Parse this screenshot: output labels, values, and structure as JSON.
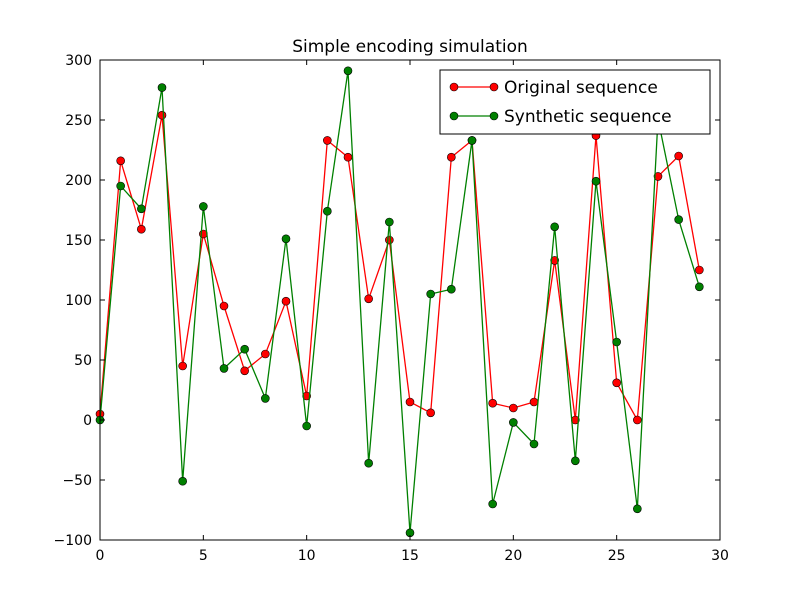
{
  "chart_data": {
    "type": "line",
    "title": "Simple encoding simulation",
    "xlabel": "",
    "ylabel": "",
    "xlim": [
      0,
      30
    ],
    "ylim": [
      -100,
      300
    ],
    "xticks": [
      0,
      5,
      10,
      15,
      20,
      25,
      30
    ],
    "yticks": [
      -100,
      -50,
      0,
      50,
      100,
      150,
      200,
      250,
      300
    ],
    "xtick_labels": [
      "0",
      "5",
      "10",
      "15",
      "20",
      "25",
      "30"
    ],
    "ytick_labels": [
      "−100",
      "−50",
      "0",
      "50",
      "100",
      "150",
      "200",
      "250",
      "300"
    ],
    "grid": false,
    "legend_position": "top-right",
    "x": [
      0,
      1,
      2,
      3,
      4,
      5,
      6,
      7,
      8,
      9,
      10,
      11,
      12,
      13,
      14,
      15,
      16,
      17,
      18,
      19,
      20,
      21,
      22,
      23,
      24,
      25,
      26,
      27,
      28,
      29
    ],
    "series": [
      {
        "name": "Original sequence",
        "color": "#ff0000",
        "values": [
          5,
          216,
          159,
          254,
          45,
          155,
          95,
          41,
          55,
          99,
          20,
          233,
          219,
          101,
          150,
          15,
          6,
          219,
          233,
          14,
          10,
          15,
          133,
          0,
          237,
          31,
          0,
          203,
          220,
          125
        ]
      },
      {
        "name": "Synthetic sequence",
        "color": "#008000",
        "values": [
          0,
          195,
          176,
          277,
          -51,
          178,
          43,
          59,
          18,
          151,
          -5,
          174,
          291,
          -36,
          165,
          -94,
          105,
          109,
          233,
          -70,
          -2,
          -20,
          161,
          -34,
          199,
          65,
          -74,
          251,
          167,
          111
        ]
      }
    ]
  }
}
